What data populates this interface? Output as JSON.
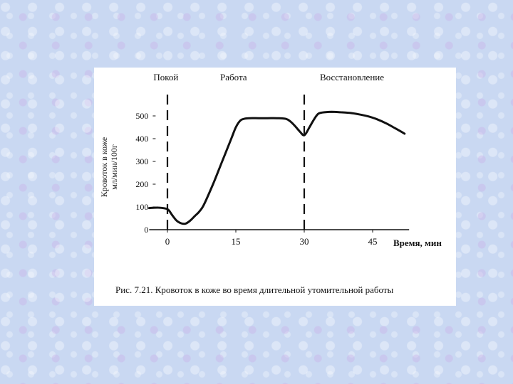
{
  "chart_data": {
    "type": "line",
    "x_unit_label": "Время, мин",
    "y_label": "Кровоток в коже мл/мин/100г",
    "x_ticks": [
      0,
      15,
      30,
      45
    ],
    "y_ticks": [
      0,
      100,
      200,
      300,
      400,
      500
    ],
    "xlim": [
      -4,
      54
    ],
    "ylim": [
      0,
      530
    ],
    "phases": [
      {
        "label": "Покой"
      },
      {
        "label": "Работа"
      },
      {
        "label": "Восстановление"
      }
    ],
    "phase_boundaries_x": [
      0,
      30
    ],
    "series": [
      {
        "x": [
          -4,
          -2,
          0,
          1,
          2,
          3,
          4,
          5,
          6,
          7,
          8,
          10,
          12,
          14,
          15,
          16,
          17,
          18,
          20,
          22,
          24,
          26,
          27,
          28,
          29,
          30,
          31,
          32,
          33,
          34,
          36,
          38,
          40,
          42,
          44,
          46,
          48,
          50,
          52
        ],
        "y": [
          95,
          97,
          90,
          65,
          40,
          28,
          27,
          40,
          60,
          80,
          110,
          200,
          300,
          400,
          450,
          480,
          488,
          490,
          490,
          490,
          490,
          487,
          475,
          455,
          432,
          415,
          445,
          480,
          508,
          515,
          518,
          516,
          513,
          507,
          498,
          485,
          467,
          445,
          422
        ]
      }
    ],
    "caption": "Рис. 7.21. Кровоток в коже во время длительной утомительной работы"
  }
}
